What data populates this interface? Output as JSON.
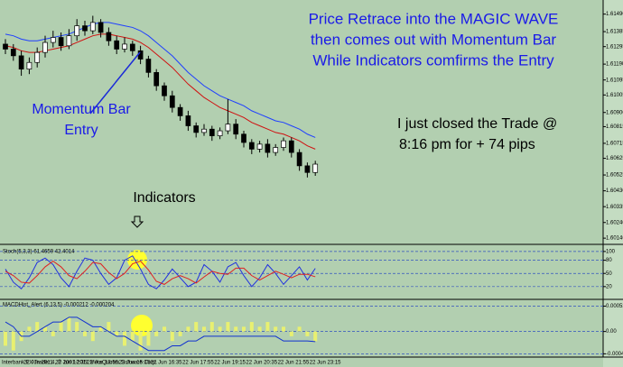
{
  "chart_data": [
    {
      "type": "candlestick",
      "annotations": [
        "Price Retrace into the MAGIC WAVE",
        "then comes out with Momentum Bar",
        "While Indicators comfirms the Entry",
        "Momentum Bar",
        "Entry",
        "I just closed the Trade @",
        "8:16 pm  for + 74 pips",
        "Indicators"
      ],
      "footer": "Interbank FX Trader 4, © 2001-2011 MetaQuotes Software Corp.",
      "categories": [
        "22 Jun 2011",
        null,
        null,
        null,
        "22 Jun 12:35",
        null,
        null,
        null,
        "22 Jun 13:55",
        null,
        null,
        null,
        "22 Jun 15:15",
        null,
        null,
        null,
        "22 Jun 16:35",
        null,
        null,
        null,
        "22 Jun 17:55",
        null,
        null,
        null,
        "22 Jun 19:15",
        null,
        null,
        null,
        "22 Jun 20:35",
        null,
        null,
        null,
        "22 Jun 21:55",
        null,
        null,
        null,
        "22 Jun 23:15",
        null,
        null,
        null
      ],
      "open": [
        1.6131,
        1.6128,
        1.6124,
        1.6116,
        1.612,
        1.6126,
        1.6132,
        1.6135,
        1.613,
        1.6136,
        1.6142,
        1.6139,
        1.6144,
        1.6138,
        1.6133,
        1.6128,
        1.6131,
        1.6127,
        1.6122,
        1.6114,
        1.6106,
        1.61,
        1.6093,
        1.6088,
        1.6082,
        1.6078,
        1.608,
        1.6076,
        1.6079,
        1.6083,
        1.6077,
        1.6072,
        1.6068,
        1.6071,
        1.6066,
        1.6069,
        1.6073,
        1.6066,
        1.6058,
        1.6054
      ],
      "high": [
        1.6134,
        1.6131,
        1.6127,
        1.6123,
        1.6129,
        1.6136,
        1.6139,
        1.6138,
        1.614,
        1.6146,
        1.6145,
        1.6148,
        1.6146,
        1.6141,
        1.6136,
        1.6135,
        1.6133,
        1.613,
        1.6124,
        1.6116,
        1.6108,
        1.6103,
        1.6095,
        1.6091,
        1.6084,
        1.6083,
        1.6082,
        1.6081,
        1.6098,
        1.6086,
        1.6079,
        1.6074,
        1.6073,
        1.6074,
        1.6071,
        1.6075,
        1.6075,
        1.6068,
        1.606,
        1.6061
      ],
      "low": [
        1.6125,
        1.6121,
        1.6112,
        1.6113,
        1.6117,
        1.6123,
        1.6129,
        1.6127,
        1.6128,
        1.6133,
        1.6136,
        1.6137,
        1.6135,
        1.613,
        1.6125,
        1.6126,
        1.6124,
        1.6119,
        1.6111,
        1.6103,
        1.6097,
        1.609,
        1.6085,
        1.6079,
        1.6075,
        1.6076,
        1.6073,
        1.6074,
        1.6077,
        1.6074,
        1.6069,
        1.6065,
        1.6066,
        1.6063,
        1.6064,
        1.6067,
        1.6063,
        1.6055,
        1.6051,
        1.6052
      ],
      "close": [
        1.6128,
        1.6124,
        1.6116,
        1.612,
        1.6126,
        1.6132,
        1.6135,
        1.613,
        1.6136,
        1.6142,
        1.6139,
        1.6144,
        1.6138,
        1.6133,
        1.6128,
        1.6131,
        1.6127,
        1.6122,
        1.6114,
        1.6106,
        1.61,
        1.6093,
        1.6088,
        1.6082,
        1.6078,
        1.608,
        1.6076,
        1.6079,
        1.6083,
        1.6077,
        1.6072,
        1.6068,
        1.6071,
        1.6066,
        1.6069,
        1.6073,
        1.6066,
        1.6058,
        1.6054,
        1.6059
      ],
      "up_color": "#ffffff",
      "down_color": "#000000",
      "series": [
        {
          "color": "#1f3fff",
          "values": [
            1.6137,
            1.6136,
            1.6134,
            1.6133,
            1.6133,
            1.6134,
            1.6135,
            1.6136,
            1.6137,
            1.6139,
            1.6141,
            1.6143,
            1.6144,
            1.6144,
            1.6143,
            1.6142,
            1.6141,
            1.6139,
            1.6136,
            1.6132,
            1.6128,
            1.6124,
            1.6119,
            1.6114,
            1.611,
            1.6106,
            1.6103,
            1.61,
            1.6098,
            1.6096,
            1.6094,
            1.6091,
            1.6089,
            1.6087,
            1.6085,
            1.6084,
            1.6082,
            1.608,
            1.6077,
            1.6075
          ]
        },
        {
          "color": "#d01010",
          "values": [
            1.613,
            1.6129,
            1.6127,
            1.6126,
            1.6126,
            1.6127,
            1.6128,
            1.6129,
            1.613,
            1.6132,
            1.6134,
            1.6136,
            1.6137,
            1.6137,
            1.6136,
            1.6135,
            1.6134,
            1.6132,
            1.6129,
            1.6125,
            1.6121,
            1.6117,
            1.6112,
            1.6107,
            1.6103,
            1.6099,
            1.6096,
            1.6093,
            1.6091,
            1.6089,
            1.6087,
            1.6084,
            1.6082,
            1.608,
            1.6078,
            1.6077,
            1.6075,
            1.6073,
            1.607,
            1.6068
          ]
        }
      ],
      "ylim": [
        1.61553,
        1.60125
      ],
      "yticks": [
        {
          "value": 1.6149,
          "label": "1.61490"
        },
        {
          "value": 1.61385,
          "label": "1.61385"
        },
        {
          "value": 1.61295,
          "label": "1.61295"
        },
        {
          "value": 1.6119,
          "label": "1.61190"
        },
        {
          "value": 1.61095,
          "label": "1.61095"
        },
        {
          "value": 1.61005,
          "label": "1.61005"
        },
        {
          "value": 1.609,
          "label": "1.60900"
        },
        {
          "value": 1.60815,
          "label": "1.60815"
        },
        {
          "value": 1.60715,
          "label": "1.60715"
        },
        {
          "value": 1.60625,
          "label": "1.60625"
        },
        {
          "value": 1.60525,
          "label": "1.60525"
        },
        {
          "value": 1.6043,
          "label": "1.60430"
        },
        {
          "value": 1.60335,
          "label": "1.60335"
        },
        {
          "value": 1.6024,
          "label": "1.60240"
        },
        {
          "value": 1.60146,
          "label": "1.60146"
        }
      ]
    },
    {
      "type": "line",
      "title": "Stoch(5,3,3) 61.4659 42.4014",
      "series": [
        {
          "color": "#2030e0",
          "values": [
            60,
            30,
            15,
            40,
            75,
            85,
            70,
            40,
            20,
            55,
            85,
            80,
            50,
            25,
            40,
            80,
            90,
            60,
            25,
            15,
            35,
            60,
            40,
            20,
            30,
            70,
            55,
            30,
            65,
            75,
            45,
            20,
            40,
            70,
            50,
            25,
            45,
            65,
            35,
            61.4659
          ]
        },
        {
          "color": "#e02020",
          "values": [
            55,
            45,
            30,
            28,
            45,
            65,
            78,
            65,
            45,
            38,
            55,
            75,
            72,
            52,
            38,
            50,
            72,
            78,
            58,
            32,
            25,
            38,
            45,
            38,
            28,
            42,
            55,
            50,
            48,
            62,
            62,
            45,
            35,
            45,
            55,
            48,
            40,
            48,
            48,
            42.4014
          ]
        }
      ],
      "ylim": [
        -5,
        110
      ],
      "yticks": [
        100,
        80,
        50,
        20
      ],
      "grid": true
    },
    {
      "type": "macd",
      "title": "MACDHist_Alert (6,13,5) -0.000212 -0.000204",
      "series": [
        {
          "color": "#e8f070",
          "values": [
            -0.0003,
            -0.0004,
            -0.0002,
            0.0001,
            0.0002,
            0.0001,
            -0.0001,
            0.0002,
            0.0003,
            0.0002,
            -0.0001,
            -0.0002,
            0.0001,
            0.0002,
            -0.0001,
            -0.0003,
            -0.0002,
            -0.0004,
            -0.0003,
            -0.0001,
            0.0001,
            -0.0002,
            -0.0001,
            0.0001,
            0.0002,
            0.0001,
            0.0002,
            0.0001,
            0.0002,
            0.0001,
            0.0001,
            0.0002,
            0.0001,
            0.0002,
            0.0001,
            0.0001,
            -0.0001,
            0.0001,
            -0.0001,
            -0.000204
          ]
        },
        {
          "color": "#1030d0",
          "values": [
            0.0002,
            0.0001,
            -0.0001,
            -0.0001,
            0,
            0.0001,
            0.0002,
            0.0002,
            0.0003,
            0.0003,
            0.0002,
            0.0001,
            0.0001,
            0,
            -0.0001,
            -0.0001,
            -0.0002,
            -0.0003,
            -0.0004,
            -0.0004,
            -0.0004,
            -0.0003,
            -0.0003,
            -0.0002,
            -0.0002,
            -0.0001,
            -0.0001,
            -0.0001,
            -0.0001,
            -0.0001,
            -0.0001,
            -0.0001,
            -0.0001,
            -0.0001,
            -0.0001,
            -0.0002,
            -0.0002,
            -0.0002,
            -0.0002,
            -0.000212
          ]
        }
      ],
      "ylim": [
        -0.0005,
        0.0006
      ],
      "yticks": [
        0.000533,
        {
          "value": 0,
          "label": "0.00"
        },
        -0.000469
      ],
      "grid": true
    }
  ]
}
